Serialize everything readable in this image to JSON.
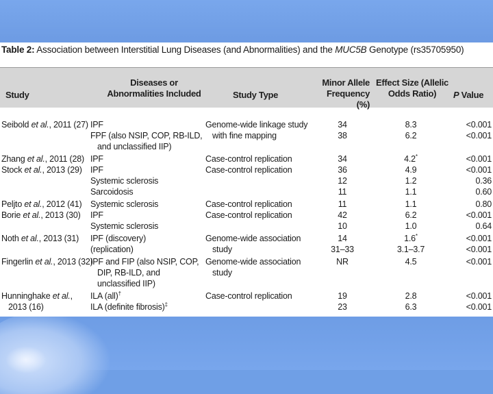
{
  "caption": {
    "label": "Table 2:",
    "text_pre": " Association between Interstitial Lung Diseases (and Abnormalities) and the ",
    "gene": "MUC5B",
    "text_post": " Genotype (rs35705950)"
  },
  "headers": {
    "study": "Study",
    "diseases_line1": "Diseases or",
    "diseases_line2": "Abnormalities Included",
    "type": "Study Type",
    "freq_line1": "Minor Allele",
    "freq_line2": "Frequency (%)",
    "effect_line1": "Effect Size (Allelic",
    "effect_line2": "Odds Ratio)",
    "p_letter": "P",
    "p_rest": " Value"
  },
  "rows": {
    "r1": {
      "author": "Seibold",
      "etal": " et al.",
      "rest": ", 2011 (27)",
      "disease": "IPF",
      "type": "Genome-wide linkage study",
      "freq": "34",
      "effect": "8.3",
      "p": "<0.001"
    },
    "r2": {
      "disease": "FPF (also NSIP, COP, RB-ILD,",
      "type": "with fine mapping",
      "freq": "38",
      "effect": "6.2",
      "p": "<0.001"
    },
    "r2b": {
      "disease": "and unclassified IIP)"
    },
    "r3": {
      "author": "Zhang",
      "etal": " et al.",
      "rest": ", 2011 (28)",
      "disease": "IPF",
      "type": "Case-control replication",
      "freq": "34",
      "effect": "4.2",
      "effect_sup": "*",
      "p": "<0.001"
    },
    "r4": {
      "author": "Stock",
      "etal": " et al.",
      "rest": ", 2013 (29)",
      "disease": "IPF",
      "type": "Case-control replication",
      "freq": "36",
      "effect": "4.9",
      "p": "<0.001"
    },
    "r5": {
      "disease": "Systemic sclerosis",
      "freq": "12",
      "effect": "1.2",
      "p": "0.36"
    },
    "r6": {
      "disease": "Sarcoidosis",
      "freq": "11",
      "effect": "1.1",
      "p": "0.60"
    },
    "r7": {
      "author": "Peljto",
      "etal": " et al.",
      "rest": ", 2012 (41)",
      "disease": "Systemic sclerosis",
      "type": "Case-control replication",
      "freq": "11",
      "effect": "1.1",
      "p": "0.80"
    },
    "r8": {
      "author": "Borie",
      "etal": " et al.",
      "rest": ", 2013 (30)",
      "disease": "IPF",
      "type": "Case-control replication",
      "freq": "42",
      "effect": "6.2",
      "p": "<0.001"
    },
    "r9": {
      "disease": "Systemic sclerosis",
      "freq": "10",
      "effect": "1.0",
      "p": "0.64"
    },
    "r10": {
      "author": "Noth",
      "etal": " et al.",
      "rest": ", 2013 (31)",
      "disease": "IPF (discovery)",
      "type": "Genome-wide association",
      "freq": "14",
      "effect": "1.6",
      "effect_sup": "*",
      "p": "<0.001"
    },
    "r11": {
      "disease": "(replication)",
      "type": "study",
      "freq": "31–33",
      "effect": "3.1–3.7",
      "p": "<0.001"
    },
    "r12": {
      "author": "Fingerlin",
      "etal": " et al.",
      "rest": ", 2013 (32)",
      "disease": "IPF and FIP (also NSIP, COP,",
      "type": "Genome-wide association",
      "freq": "NR",
      "effect": "4.5",
      "p": "<0.001"
    },
    "r12b": {
      "disease": "DIP, RB-ILD, and",
      "type": "study"
    },
    "r12c": {
      "disease": "unclassified IIP)"
    },
    "r13": {
      "author": "Hunninghake",
      "etal": " et al.",
      "rest": ",",
      "disease": "ILA (all)",
      "disease_sup": "†",
      "type": "Case-control replication",
      "freq": "19",
      "effect": "2.8",
      "p": "<0.001"
    },
    "r14": {
      "rest": "2013 (16)",
      "disease": "ILA (definite fibrosis)",
      "disease_sup": "‡",
      "freq": "23",
      "effect": "6.3",
      "p": "<0.001"
    }
  }
}
